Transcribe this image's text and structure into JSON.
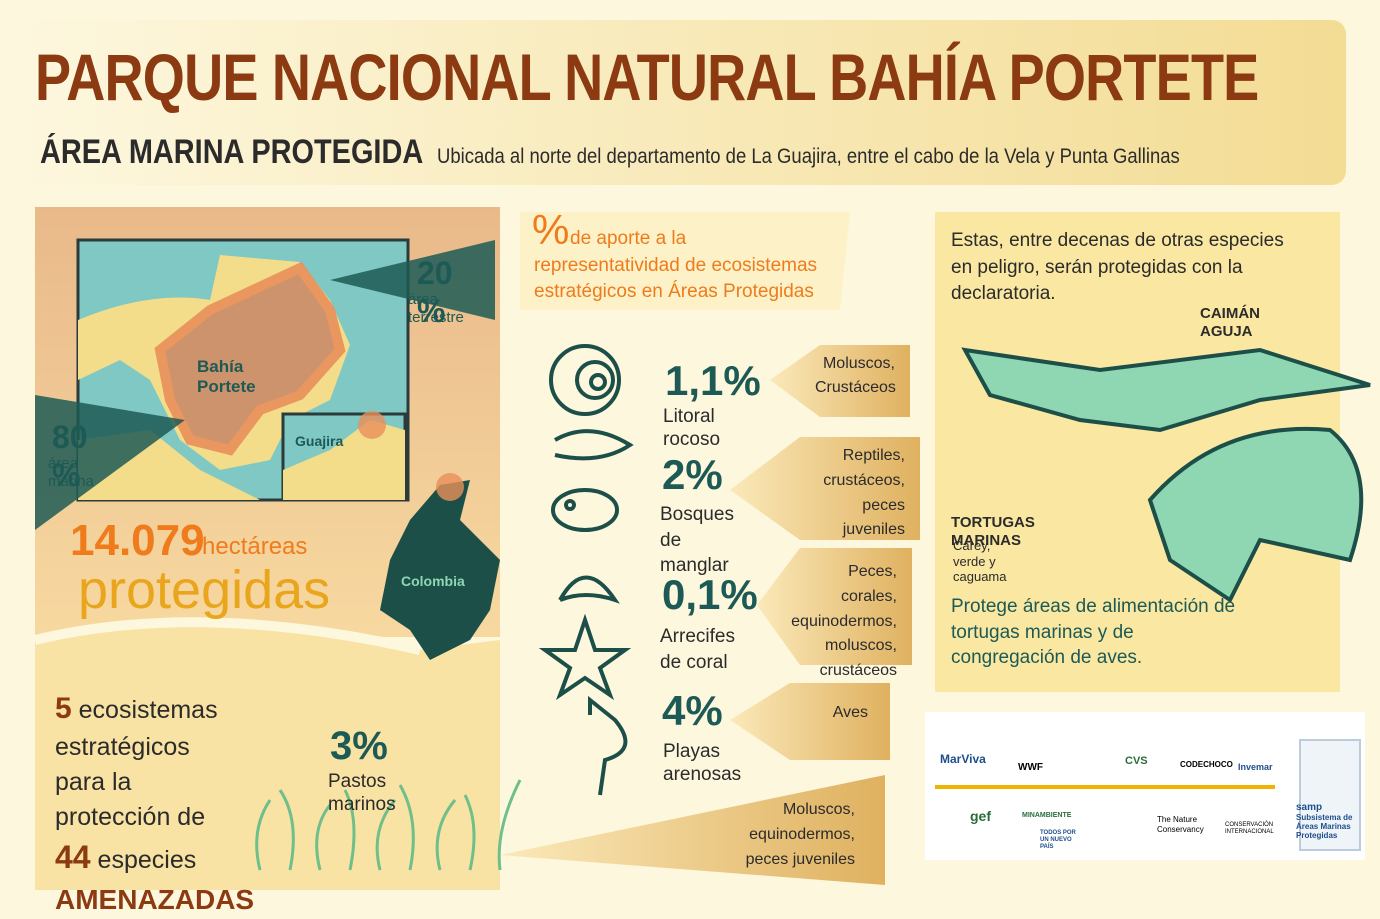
{
  "header": {
    "title": "PARQUE NACIONAL NATURAL BAHÍA PORTETE",
    "subtitle": "ÁREA MARINA PROTEGIDA",
    "description": "Ubicada al norte del departamento de La Guajira, entre el cabo de la Vela y Punta Gallinas"
  },
  "map": {
    "terrestrial_percent": "20 %",
    "terrestrial_label": "área terrestre",
    "marine_percent": "80 %",
    "marine_label": "área marina",
    "place": "Bahía Portete",
    "region": "Guajira",
    "country": "Colombia"
  },
  "area": {
    "number": "14.079",
    "unit": "hectáreas",
    "word": "protegidas"
  },
  "summary": {
    "count": "5",
    "text": "ecosistemas estratégicos para la protección de",
    "species_count": "44",
    "species_word": "especies",
    "threat": "AMENAZADAS"
  },
  "contribution": {
    "symbol": "%",
    "title": "de aporte a la representatividad de ecosistemas estratégicos en Áreas Protegidas",
    "items": [
      {
        "percent": "1,1%",
        "name": "Litoral rocoso",
        "species": "Moluscos, Crustáceos"
      },
      {
        "percent": "2%",
        "name": "Bosques de manglar",
        "species": "Reptiles, crustáceos, peces juveniles"
      },
      {
        "percent": "0,1%",
        "name": "Arrecifes de coral",
        "species": "Peces, corales, equinodermos, moluscos, crustáceos"
      },
      {
        "percent": "4%",
        "name": "Playas arenosas",
        "species": "Aves"
      }
    ],
    "seagrass": {
      "percent": "3%",
      "name": "Pastos marinos",
      "species": "Moluscos, equinodermos, peces juveniles"
    }
  },
  "species_panel": {
    "intro": "Estas, entre decenas de otras especies en peligro, serán protegidas con la declaratoria.",
    "caiman": "CAIMÁN AGUJA",
    "turtles": "TORTUGAS MARINAS",
    "turtles_detail": "Carey, verde y caguama",
    "note": "Protege áreas de alimentación de tortugas marinas y de congregación de aves."
  },
  "logos": [
    "MarViva",
    "WWF",
    "CVS",
    "CODECHOCO",
    "Invemar",
    "gef",
    "MINAMBIENTE",
    "TODOS POR UN NUEVO PAÍS",
    "The Nature Conservancy",
    "CONSERVACIÓN INTERNACIONAL",
    "samp",
    "Subsistema de Áreas Marinas Protegidas"
  ]
}
